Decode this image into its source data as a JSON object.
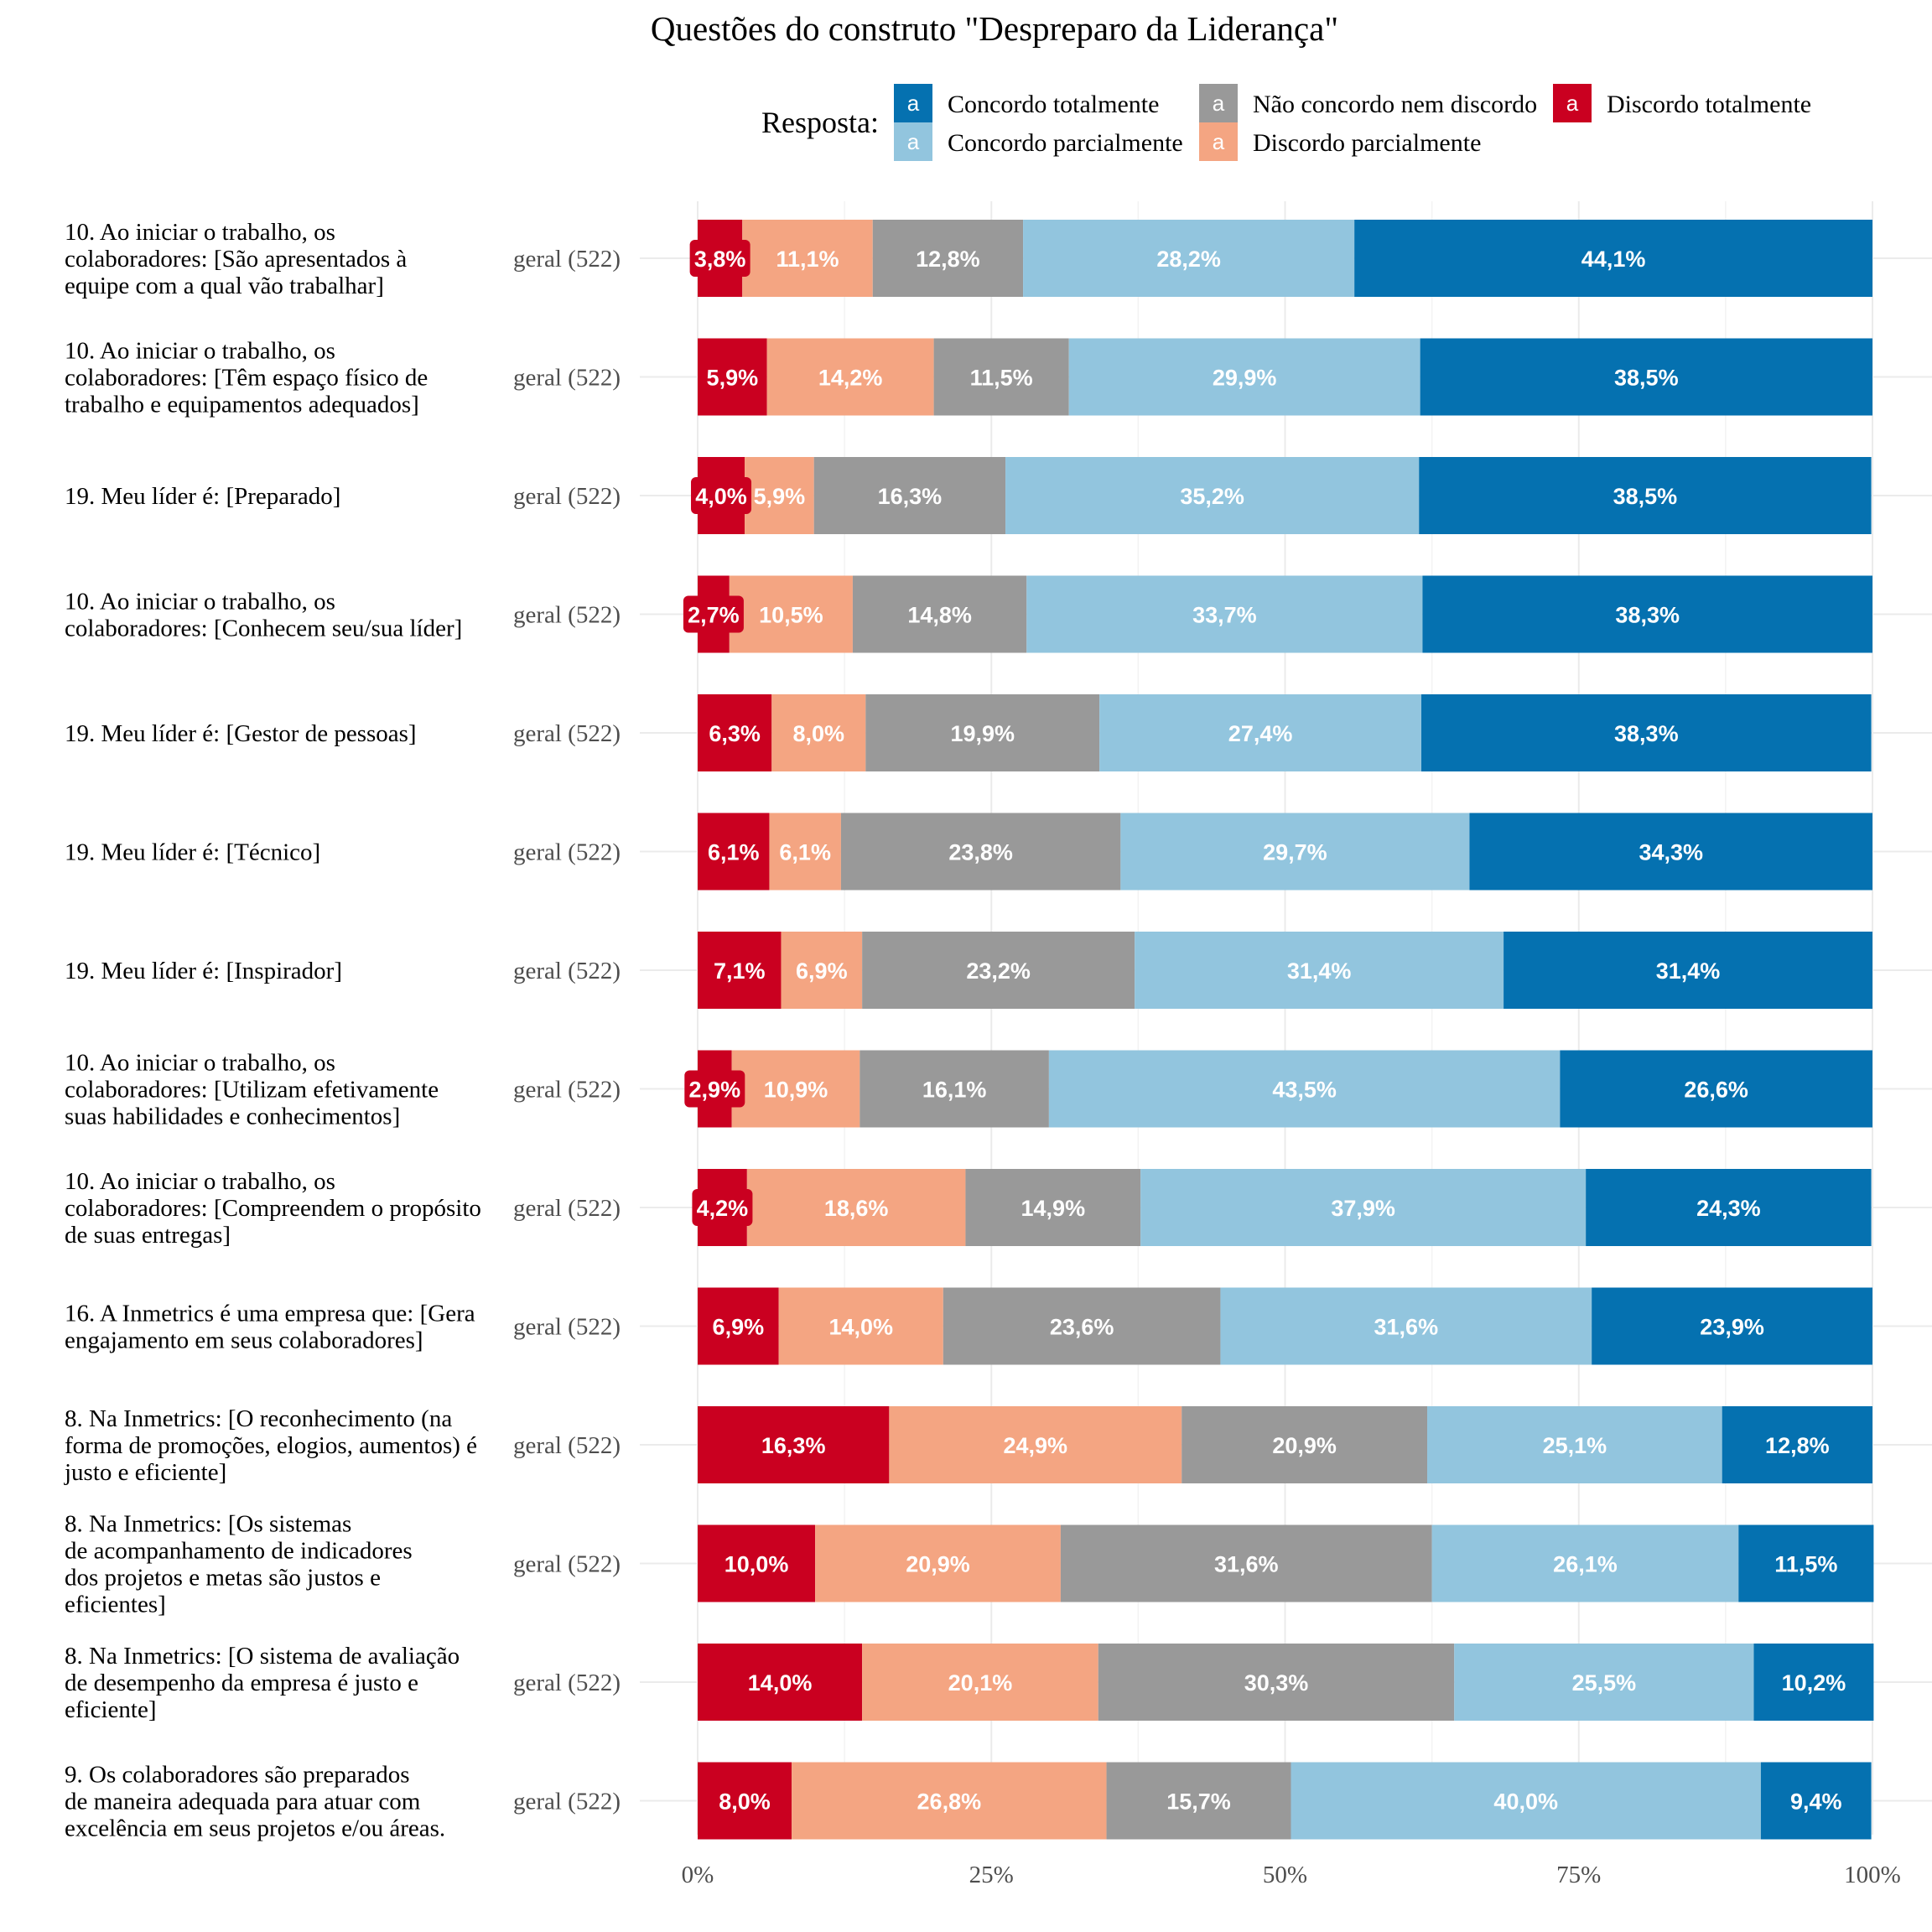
{
  "chart_data": {
    "type": "bar",
    "orientation": "horizontal",
    "stacked": true,
    "normalized": true,
    "title": "Questões do construto \"Despreparo da Liderança\"",
    "legend": {
      "title": "Resposta:",
      "position": "top",
      "key_glyph": "a",
      "entries": [
        {
          "name": "Concordo totalmente",
          "color": "#0571b0"
        },
        {
          "name": "Não concordo nem discordo",
          "color": "#999999"
        },
        {
          "name": "Discordo totalmente",
          "color": "#ca0020"
        },
        {
          "name": "Concordo parcialmente",
          "color": "#92c5de"
        },
        {
          "name": "Discordo parcialmente",
          "color": "#f4a582"
        }
      ]
    },
    "series_order": [
      "Discordo totalmente",
      "Discordo parcialmente",
      "Não concordo nem discordo",
      "Concordo parcialmente",
      "Concordo totalmente"
    ],
    "colors": {
      "Discordo totalmente": "#ca0020",
      "Discordo parcialmente": "#f4a582",
      "Não concordo nem discordo": "#999999",
      "Concordo parcialmente": "#92c5de",
      "Concordo totalmente": "#0571b0"
    },
    "x_ticks": [
      "0%",
      "25%",
      "50%",
      "75%",
      "100%"
    ],
    "xlim": [
      0,
      100
    ],
    "grid": true,
    "rows": [
      {
        "question": [
          "10. Ao iniciar o trabalho, os",
          "colaboradores: [São apresentados à",
          "equipe com a qual vão trabalhar]"
        ],
        "group": "geral (522)",
        "values": [
          3.8,
          11.1,
          12.8,
          28.2,
          44.1
        ],
        "labels": [
          "3,8%",
          "11,1%",
          "12,8%",
          "28,2%",
          "44,1%"
        ]
      },
      {
        "question": [
          "10. Ao iniciar o trabalho, os",
          "colaboradores: [Têm espaço físico de",
          "trabalho e equipamentos adequados]"
        ],
        "group": "geral (522)",
        "values": [
          5.9,
          14.2,
          11.5,
          29.9,
          38.5
        ],
        "labels": [
          "5,9%",
          "14,2%",
          "11,5%",
          "29,9%",
          "38,5%"
        ]
      },
      {
        "question": [
          "19. Meu líder é: [Preparado]"
        ],
        "group": "geral (522)",
        "values": [
          4.0,
          5.9,
          16.3,
          35.2,
          38.5
        ],
        "labels": [
          "4,0%",
          "5,9%",
          "16,3%",
          "35,2%",
          "38,5%"
        ]
      },
      {
        "question": [
          "10. Ao iniciar o trabalho, os",
          "colaboradores: [Conhecem seu/sua líder]"
        ],
        "group": "geral (522)",
        "values": [
          2.7,
          10.5,
          14.8,
          33.7,
          38.3
        ],
        "labels": [
          "2,7%",
          "10,5%",
          "14,8%",
          "33,7%",
          "38,3%"
        ]
      },
      {
        "question": [
          "19. Meu líder é: [Gestor de pessoas]"
        ],
        "group": "geral (522)",
        "values": [
          6.3,
          8.0,
          19.9,
          27.4,
          38.3
        ],
        "labels": [
          "6,3%",
          "8,0%",
          "19,9%",
          "27,4%",
          "38,3%"
        ]
      },
      {
        "question": [
          "19. Meu líder é: [Técnico]"
        ],
        "group": "geral (522)",
        "values": [
          6.1,
          6.1,
          23.8,
          29.7,
          34.3
        ],
        "labels": [
          "6,1%",
          "6,1%",
          "23,8%",
          "29,7%",
          "34,3%"
        ]
      },
      {
        "question": [
          "19. Meu líder é: [Inspirador]"
        ],
        "group": "geral (522)",
        "values": [
          7.1,
          6.9,
          23.2,
          31.4,
          31.4
        ],
        "labels": [
          "7,1%",
          "6,9%",
          "23,2%",
          "31,4%",
          "31,4%"
        ]
      },
      {
        "question": [
          "10. Ao iniciar o trabalho, os",
          "colaboradores: [Utilizam efetivamente",
          "suas habilidades e conhecimentos]"
        ],
        "group": "geral (522)",
        "values": [
          2.9,
          10.9,
          16.1,
          43.5,
          26.6
        ],
        "labels": [
          "2,9%",
          "10,9%",
          "16,1%",
          "43,5%",
          "26,6%"
        ]
      },
      {
        "question": [
          "10. Ao iniciar o trabalho, os",
          "colaboradores: [Compreendem o propósito",
          "de suas entregas]"
        ],
        "group": "geral (522)",
        "values": [
          4.2,
          18.6,
          14.9,
          37.9,
          24.3
        ],
        "labels": [
          "4,2%",
          "18,6%",
          "14,9%",
          "37,9%",
          "24,3%"
        ]
      },
      {
        "question": [
          "16. A Inmetrics é uma empresa que: [Gera",
          "engajamento em seus colaboradores]"
        ],
        "group": "geral (522)",
        "values": [
          6.9,
          14.0,
          23.6,
          31.6,
          23.9
        ],
        "labels": [
          "6,9%",
          "14,0%",
          "23,6%",
          "31,6%",
          "23,9%"
        ]
      },
      {
        "question": [
          "8. Na Inmetrics: [O reconhecimento (na",
          "forma de promoções, elogios, aumentos) é",
          "justo e eficiente]"
        ],
        "group": "geral (522)",
        "values": [
          16.3,
          24.9,
          20.9,
          25.1,
          12.8
        ],
        "labels": [
          "16,3%",
          "24,9%",
          "20,9%",
          "25,1%",
          "12,8%"
        ]
      },
      {
        "question": [
          "8. Na Inmetrics: [Os sistemas",
          "de acompanhamento de indicadores",
          "dos projetos e metas são justos e",
          "eficientes]"
        ],
        "group": "geral (522)",
        "values": [
          10.0,
          20.9,
          31.6,
          26.1,
          11.5
        ],
        "labels": [
          "10,0%",
          "20,9%",
          "31,6%",
          "26,1%",
          "11,5%"
        ]
      },
      {
        "question": [
          "8. Na Inmetrics: [O sistema de avaliação",
          "de desempenho da empresa é justo e",
          "eficiente]"
        ],
        "group": "geral (522)",
        "values": [
          14.0,
          20.1,
          30.3,
          25.5,
          10.2
        ],
        "labels": [
          "14,0%",
          "20,1%",
          "30,3%",
          "25,5%",
          "10,2%"
        ]
      },
      {
        "question": [
          "9. Os colaboradores são preparados",
          "de maneira adequada para atuar com",
          "excelência em seus projetos e/ou áreas."
        ],
        "group": "geral (522)",
        "values": [
          8.0,
          26.8,
          15.7,
          40.0,
          9.4
        ],
        "labels": [
          "8,0%",
          "26,8%",
          "15,7%",
          "40,0%",
          "9,4%"
        ]
      }
    ]
  }
}
